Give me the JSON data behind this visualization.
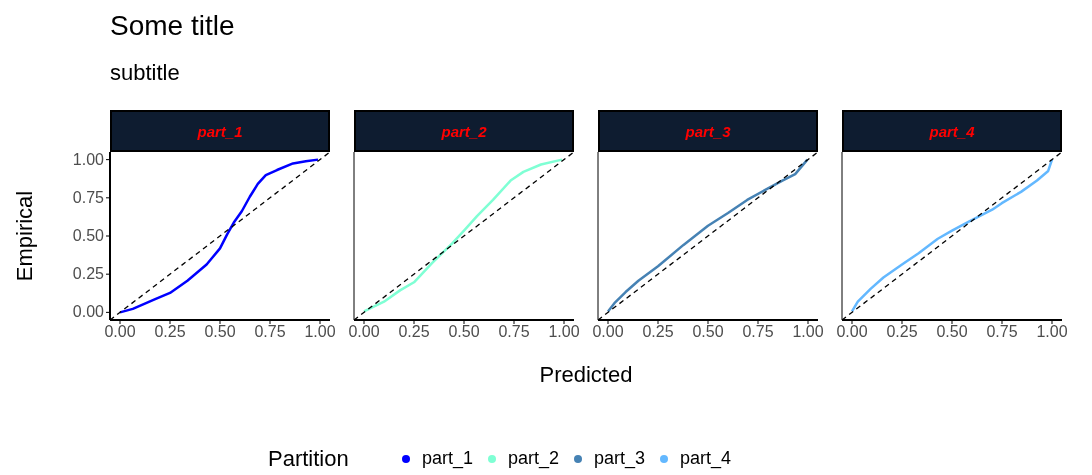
{
  "chart_data": [
    {
      "type": "other",
      "title": "Some title",
      "subtitle": "subtitle",
      "xlabel": "Predicted"
    },
    {
      "type": "line",
      "title": "part_1",
      "ylabel": "Empirical",
      "legend_title": "Partition",
      "legend": "bottom",
      "xlim": [
        -0.05,
        1.05
      ],
      "ylim": [
        -0.05,
        1.05
      ],
      "xticks": [
        {
          "value": 0,
          "label": "0.00"
        },
        {
          "value": 0.25,
          "label": "0.25"
        },
        {
          "value": 0.5,
          "label": "0.50"
        },
        {
          "value": 0.75,
          "label": "0.75"
        },
        {
          "value": 1,
          "label": "1.00"
        }
      ],
      "yticks": [
        {
          "value": 0,
          "label": "0.00"
        },
        {
          "value": 0.25,
          "label": "0.25"
        },
        {
          "value": 0.5,
          "label": "0.50"
        },
        {
          "value": 0.75,
          "label": "0.75"
        },
        {
          "value": 1,
          "label": "1.00"
        }
      ],
      "grid": false,
      "series": [
        {
          "name": "part_1",
          "color": "#0000ff",
          "x": [
            0,
            0.064,
            0.176,
            0.25,
            0.337,
            0.433,
            0.5,
            0.537,
            0.569,
            0.609,
            0.649,
            0.689,
            0.729,
            0.785,
            0.865,
            0.929,
            0.99
          ],
          "values": [
            0,
            0.023,
            0.087,
            0.127,
            0.207,
            0.313,
            0.419,
            0.514,
            0.588,
            0.662,
            0.757,
            0.841,
            0.899,
            0.932,
            0.975,
            0.989,
            1.0
          ]
        },
        {
          "type": "line",
          "color": "#000000",
          "line_style": "dashed",
          "x": [
            -0.05,
            1.05
          ],
          "values": [
            -0.05,
            1.05
          ]
        }
      ]
    },
    {
      "type": "line",
      "title": "part_2",
      "tick_labels": "x",
      "xlim": [
        -0.05,
        1.05
      ],
      "ylim": [
        -0.05,
        1.05
      ],
      "xticks": [
        {
          "value": 0,
          "label": "0.00"
        },
        {
          "value": 0.25,
          "label": "0.25"
        },
        {
          "value": 0.5,
          "label": "0.50"
        },
        {
          "value": 0.75,
          "label": "0.75"
        },
        {
          "value": 1,
          "label": "1.00"
        }
      ],
      "grid": false,
      "series": [
        {
          "name": "part_2",
          "color": "#7fffd4",
          "x": [
            0,
            0.1,
            0.18,
            0.25,
            0.34,
            0.44,
            0.5,
            0.565,
            0.645,
            0.733,
            0.797,
            0.885,
            0.99
          ],
          "values": [
            0.006,
            0.07,
            0.144,
            0.197,
            0.323,
            0.45,
            0.535,
            0.63,
            0.736,
            0.863,
            0.92,
            0.968,
            1.0
          ]
        },
        {
          "type": "line",
          "color": "#000000",
          "line_style": "dashed",
          "x": [
            -0.05,
            1.05
          ],
          "values": [
            -0.05,
            1.05
          ]
        }
      ]
    },
    {
      "type": "line",
      "title": "part_3",
      "tick_labels": "x",
      "xlim": [
        -0.05,
        1.05
      ],
      "ylim": [
        -0.05,
        1.05
      ],
      "xticks": [
        {
          "value": 0,
          "label": "0.00"
        },
        {
          "value": 0.25,
          "label": "0.25"
        },
        {
          "value": 0.5,
          "label": "0.50"
        },
        {
          "value": 0.75,
          "label": "0.75"
        },
        {
          "value": 1,
          "label": "1.00"
        }
      ],
      "grid": false,
      "series": [
        {
          "name": "part_3",
          "color": "#4682b4",
          "x": [
            0,
            0.032,
            0.088,
            0.152,
            0.25,
            0.376,
            0.5,
            0.6,
            0.696,
            0.784,
            0.872,
            0.936,
            0.997
          ],
          "values": [
            0.006,
            0.06,
            0.133,
            0.207,
            0.302,
            0.44,
            0.567,
            0.651,
            0.736,
            0.8,
            0.863,
            0.905,
            1.0
          ]
        },
        {
          "type": "line",
          "color": "#000000",
          "line_style": "dashed",
          "x": [
            -0.05,
            1.05
          ],
          "values": [
            -0.05,
            1.05
          ]
        }
      ]
    },
    {
      "type": "line",
      "title": "part_4",
      "tick_labels": "x",
      "xlim": [
        -0.05,
        1.05
      ],
      "ylim": [
        -0.05,
        1.05
      ],
      "xticks": [
        {
          "value": 0,
          "label": "0.00"
        },
        {
          "value": 0.25,
          "label": "0.25"
        },
        {
          "value": 0.5,
          "label": "0.50"
        },
        {
          "value": 0.75,
          "label": "0.75"
        },
        {
          "value": 1,
          "label": "1.00"
        }
      ],
      "grid": false,
      "series": [
        {
          "name": "part_4",
          "color": "#63b8ff",
          "x": [
            0,
            0.029,
            0.093,
            0.157,
            0.25,
            0.333,
            0.429,
            0.5,
            0.589,
            0.701,
            0.749,
            0.845,
            0.925,
            0.981,
            1.0
          ],
          "values": [
            0.006,
            0.07,
            0.154,
            0.228,
            0.313,
            0.387,
            0.482,
            0.535,
            0.598,
            0.672,
            0.715,
            0.789,
            0.863,
            0.926,
            1.0
          ]
        },
        {
          "type": "line",
          "color": "#000000",
          "line_style": "dashed",
          "x": [
            -0.05,
            1.05
          ],
          "values": [
            -0.05,
            1.05
          ]
        }
      ]
    }
  ]
}
